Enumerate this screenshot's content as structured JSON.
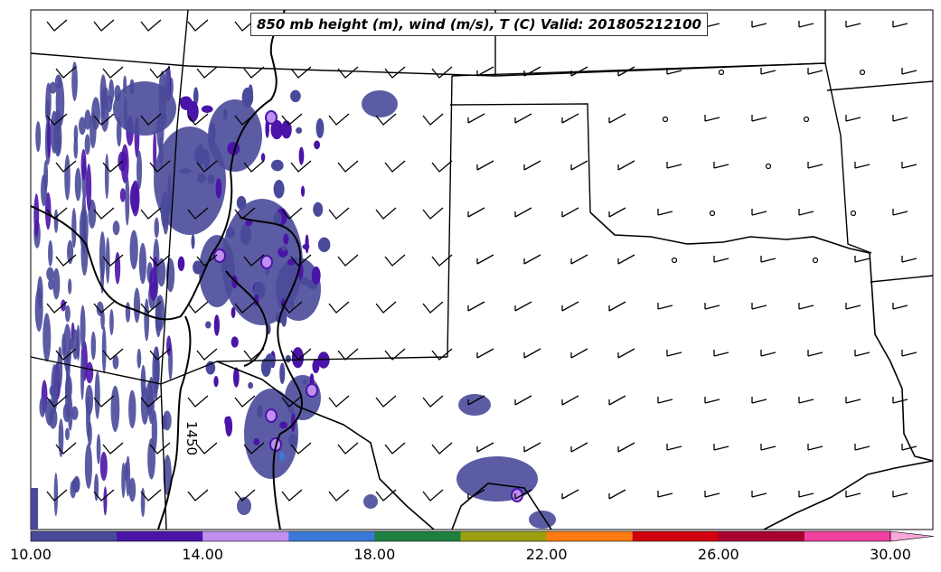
{
  "title": "850 mb height (m), wind (m/s), T (C) Valid: 201805212100",
  "contour_label": "1450",
  "colorbar": {
    "ticks": [
      "10.00",
      "14.00",
      "18.00",
      "22.00",
      "26.00",
      "30.00"
    ],
    "colors": [
      "#4a4a9a",
      "#4a14a8",
      "#c090f0",
      "#3a78d8",
      "#1e8040",
      "#9aa010",
      "#ff7a10",
      "#d00010",
      "#a80030",
      "#f040a0"
    ],
    "extend_color": "#f8a8d8"
  },
  "field_colors": {
    "band_1": "#4a4a9a",
    "band_2": "#4a14a8",
    "band_3": "#c090f0",
    "band_4": "#3a78d8"
  },
  "map": {
    "region": "US southern plains: Texas, Oklahoma, New Mexico",
    "line_color": "#000000"
  }
}
